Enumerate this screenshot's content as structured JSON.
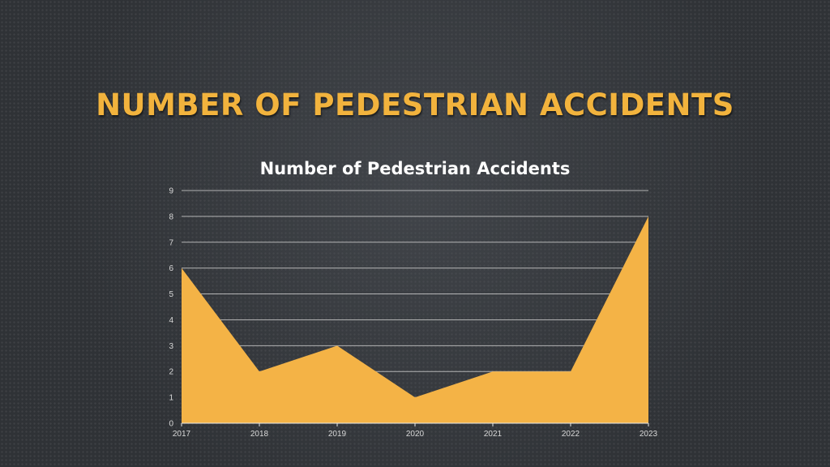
{
  "slide": {
    "title": "NUMBER OF PEDESTRIAN ACCIDENTS"
  },
  "colors": {
    "title": "#f2b33d",
    "area": "#f4b346",
    "background": "#2f3236"
  },
  "chart_data": {
    "type": "area",
    "title": "Number of Pedestrian Accidents",
    "categories": [
      "2017",
      "2018",
      "2019",
      "2020",
      "2021",
      "2022",
      "2023"
    ],
    "series": [
      {
        "values": [
          6,
          2,
          3,
          1,
          2,
          2,
          8
        ]
      }
    ],
    "y_ticks": [
      0,
      1,
      2,
      3,
      4,
      5,
      6,
      7,
      8,
      9
    ],
    "ylim": [
      0,
      9
    ],
    "grid": true,
    "legend": "none"
  }
}
